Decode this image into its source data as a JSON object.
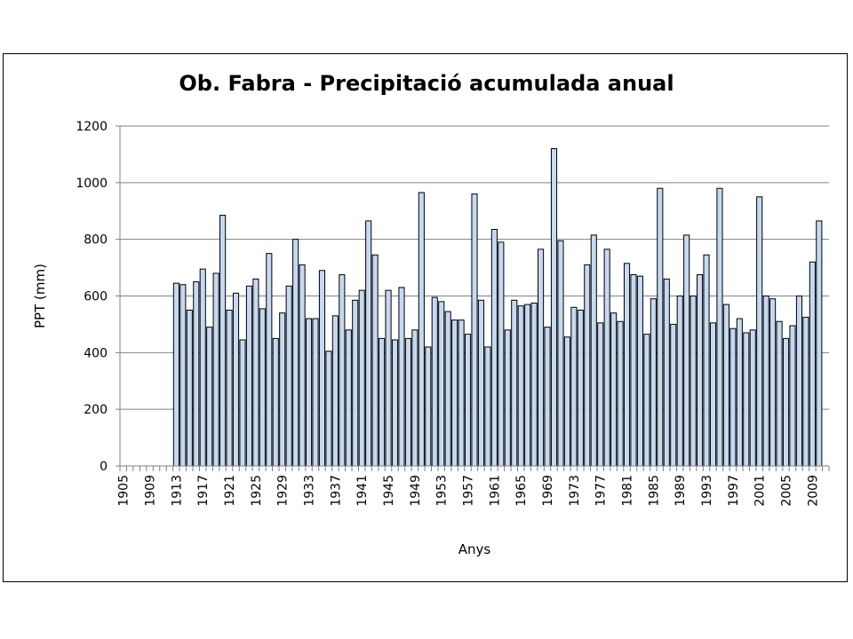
{
  "chart_data": {
    "type": "bar",
    "title": "Ob. Fabra - Precipitació acumulada anual",
    "xlabel": "Anys",
    "ylabel": "PPT (mm)",
    "ylim": [
      0,
      1200
    ],
    "y_ticks": [
      0,
      200,
      400,
      600,
      800,
      1000,
      1200
    ],
    "grid": true,
    "legend": "none",
    "colors": {
      "bar_fill": "#c6d9f1",
      "bar_stroke": "#000000",
      "grid": "#808080"
    },
    "x_tick_labels": [
      "1905",
      "1909",
      "1913",
      "1917",
      "1921",
      "1925",
      "1929",
      "1933",
      "1937",
      "1941",
      "1945",
      "1949",
      "1953",
      "1957",
      "1961",
      "1965",
      "1969",
      "1973",
      "1977",
      "1981",
      "1985",
      "1989",
      "1993",
      "1997",
      "2001",
      "2005",
      "2009"
    ],
    "categories": [
      1905,
      1906,
      1907,
      1908,
      1909,
      1910,
      1911,
      1912,
      1913,
      1914,
      1915,
      1916,
      1917,
      1918,
      1919,
      1920,
      1921,
      1922,
      1923,
      1924,
      1925,
      1926,
      1927,
      1928,
      1929,
      1930,
      1931,
      1932,
      1933,
      1934,
      1935,
      1936,
      1937,
      1938,
      1939,
      1940,
      1941,
      1942,
      1943,
      1944,
      1945,
      1946,
      1947,
      1948,
      1949,
      1950,
      1951,
      1952,
      1953,
      1954,
      1955,
      1956,
      1957,
      1958,
      1959,
      1960,
      1961,
      1962,
      1963,
      1964,
      1965,
      1966,
      1967,
      1968,
      1969,
      1970,
      1971,
      1972,
      1973,
      1974,
      1975,
      1976,
      1977,
      1978,
      1979,
      1980,
      1981,
      1982,
      1983,
      1984,
      1985,
      1986,
      1987,
      1988,
      1989,
      1990,
      1991,
      1992,
      1993,
      1994,
      1995,
      1996,
      1997,
      1998,
      1999,
      2000,
      2001,
      2002,
      2003,
      2004,
      2005,
      2006,
      2007,
      2008,
      2009,
      2010,
      2011
    ],
    "values": [
      null,
      null,
      null,
      null,
      null,
      null,
      null,
      null,
      645,
      640,
      550,
      650,
      695,
      490,
      680,
      885,
      550,
      610,
      445,
      635,
      660,
      555,
      750,
      450,
      540,
      635,
      800,
      710,
      520,
      520,
      690,
      405,
      530,
      675,
      480,
      585,
      620,
      865,
      745,
      450,
      620,
      445,
      630,
      450,
      480,
      965,
      420,
      595,
      580,
      545,
      515,
      515,
      465,
      960,
      585,
      420,
      835,
      790,
      480,
      585,
      565,
      570,
      575,
      765,
      490,
      1120,
      795,
      455,
      560,
      550,
      710,
      815,
      505,
      765,
      540,
      510,
      715,
      675,
      670,
      465,
      590,
      980,
      660,
      500,
      600,
      815,
      600,
      675,
      745,
      505,
      980,
      570,
      485,
      520,
      470,
      480,
      950,
      600,
      590,
      510,
      450,
      495,
      600,
      525,
      720,
      865,
      null
    ]
  }
}
